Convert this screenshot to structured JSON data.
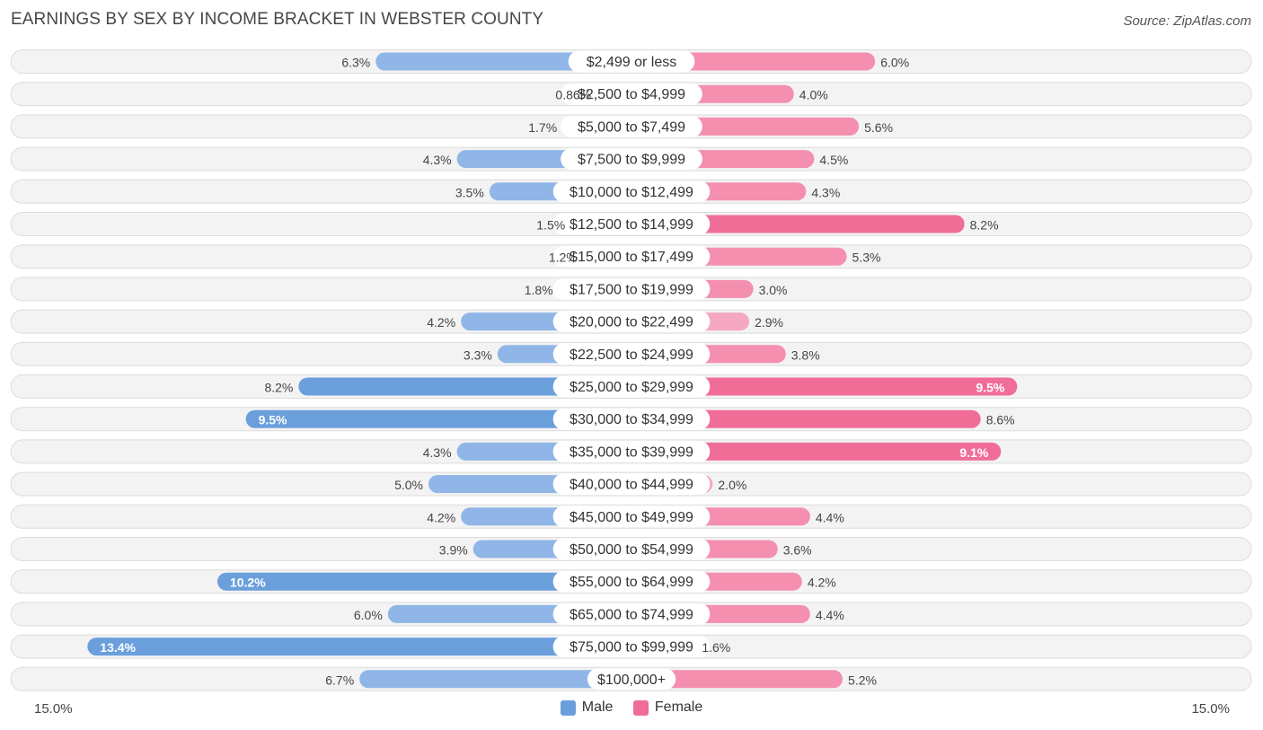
{
  "title": "EARNINGS BY SEX BY INCOME BRACKET IN WEBSTER COUNTY",
  "source": "Source: ZipAtlas.com",
  "colors": {
    "male_strong": "#6a9fdc",
    "male_light": "#a9c8ec",
    "female_strong": "#f06d97",
    "female_light": "#f5a7c1"
  },
  "chart_data": {
    "type": "bar",
    "orientation": "diverging-horizontal",
    "title": "EARNINGS BY SEX BY INCOME BRACKET IN WEBSTER COUNTY",
    "axis_max": 15.0,
    "axis_labels": {
      "left": "15.0%",
      "right": "15.0%"
    },
    "legend": [
      {
        "name": "Male",
        "color": "#6a9fdc"
      },
      {
        "name": "Female",
        "color": "#f06d97"
      }
    ],
    "categories": [
      "$2,499 or less",
      "$2,500 to $4,999",
      "$5,000 to $7,499",
      "$7,500 to $9,999",
      "$10,000 to $12,499",
      "$12,500 to $14,999",
      "$15,000 to $17,499",
      "$17,500 to $19,999",
      "$20,000 to $22,499",
      "$22,500 to $24,999",
      "$25,000 to $29,999",
      "$30,000 to $34,999",
      "$35,000 to $39,999",
      "$40,000 to $44,999",
      "$45,000 to $49,999",
      "$50,000 to $54,999",
      "$55,000 to $64,999",
      "$65,000 to $74,999",
      "$75,000 to $99,999",
      "$100,000+"
    ],
    "series": [
      {
        "name": "Male",
        "values": [
          6.3,
          0.86,
          1.7,
          4.3,
          3.5,
          1.5,
          1.2,
          1.8,
          4.2,
          3.3,
          8.2,
          9.5,
          4.3,
          5.0,
          4.2,
          3.9,
          10.2,
          6.0,
          13.4,
          6.7
        ],
        "labels": [
          "6.3%",
          "0.86%",
          "1.7%",
          "4.3%",
          "3.5%",
          "1.5%",
          "1.2%",
          "1.8%",
          "4.2%",
          "3.3%",
          "8.2%",
          "9.5%",
          "4.3%",
          "5.0%",
          "4.2%",
          "3.9%",
          "10.2%",
          "6.0%",
          "13.4%",
          "6.7%"
        ]
      },
      {
        "name": "Female",
        "values": [
          6.0,
          4.0,
          5.6,
          4.5,
          4.3,
          8.2,
          5.3,
          3.0,
          2.9,
          3.8,
          9.5,
          8.6,
          9.1,
          2.0,
          4.4,
          3.6,
          4.2,
          4.4,
          1.6,
          5.2
        ],
        "labels": [
          "6.0%",
          "4.0%",
          "5.6%",
          "4.5%",
          "4.3%",
          "8.2%",
          "5.3%",
          "3.0%",
          "2.9%",
          "3.8%",
          "9.5%",
          "8.6%",
          "9.1%",
          "2.0%",
          "4.4%",
          "3.6%",
          "4.2%",
          "4.4%",
          "1.6%",
          "5.2%"
        ]
      }
    ]
  }
}
